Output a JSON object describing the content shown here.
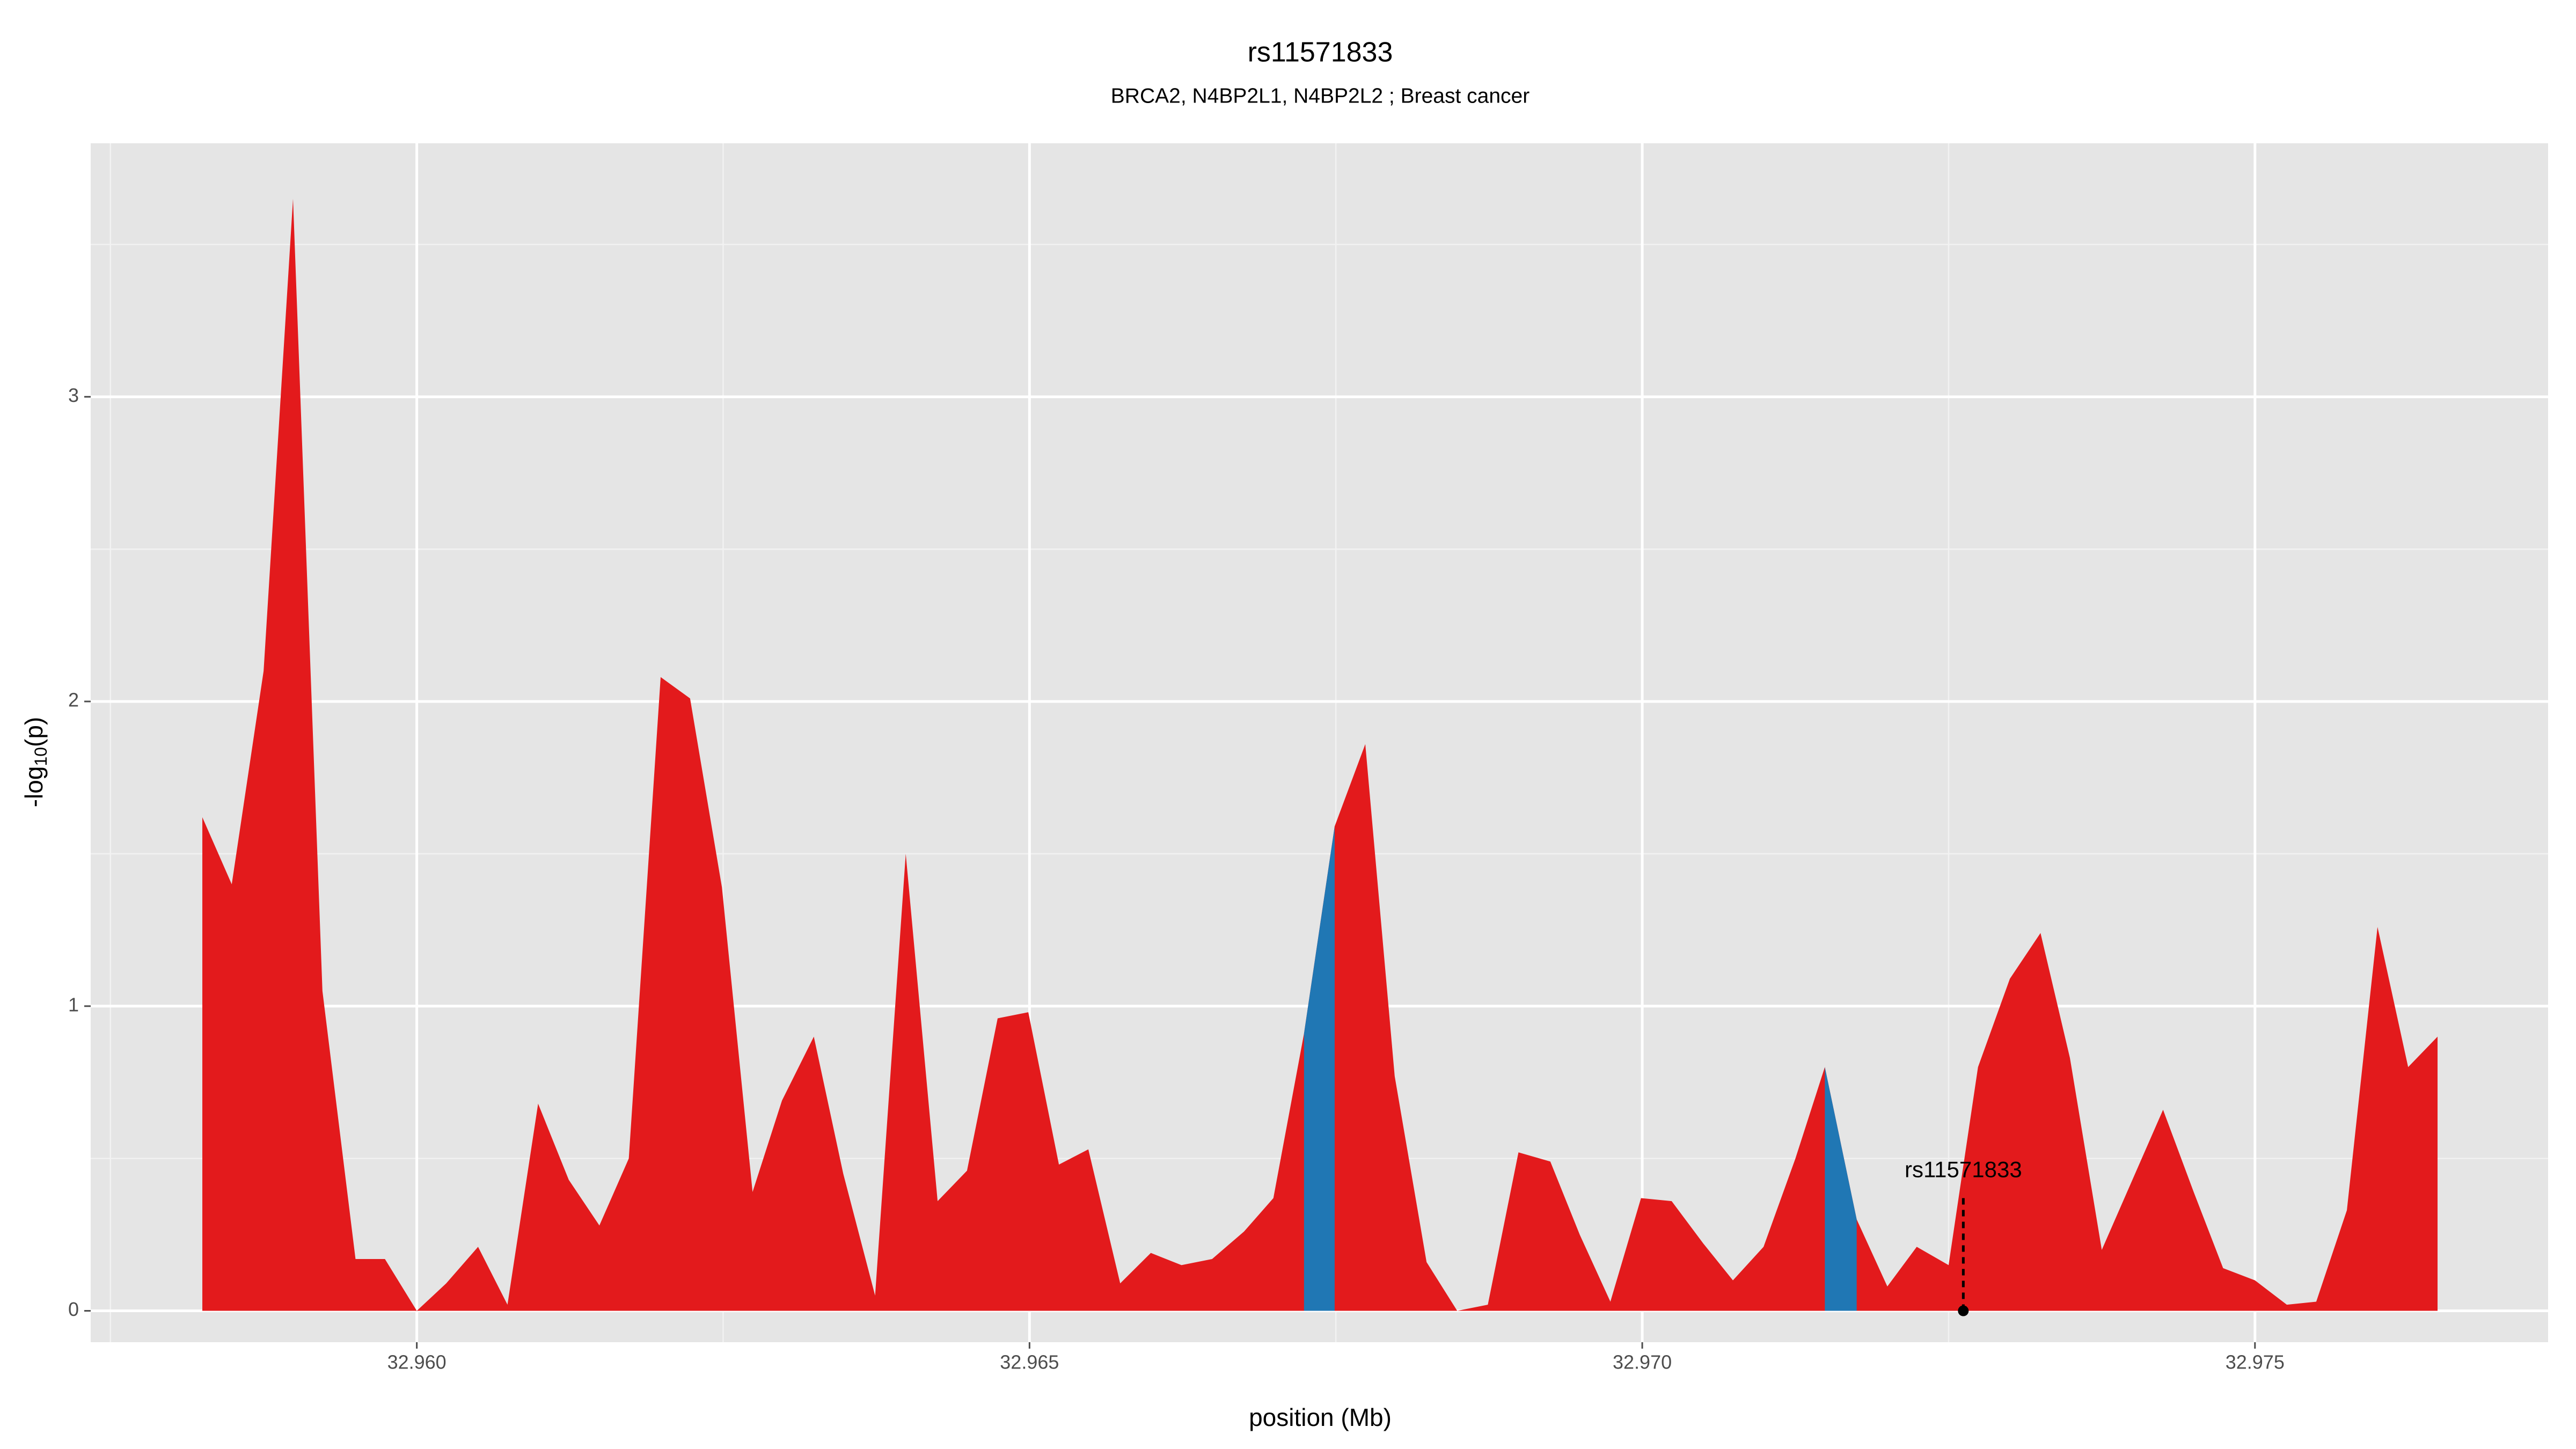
{
  "chart_data": {
    "type": "area",
    "title": "rs11571833",
    "subtitle": "BRCA2, N4BP2L1, N4BP2L2 ; Breast cancer",
    "x_label": "position (Mb)",
    "y_label": {
      "main": "-log",
      "sub": "10",
      "tail": "(p)"
    },
    "color": "#e31a1c",
    "x": [
      32.95825,
      32.95849,
      32.95875,
      32.95899,
      32.95923,
      32.9595,
      32.95974,
      32.96,
      32.96024,
      32.9605,
      32.96074,
      32.96099,
      32.96124,
      32.96149,
      32.96173,
      32.96199,
      32.96223,
      32.96249,
      32.96274,
      32.96298,
      32.96324,
      32.96348,
      32.96374,
      32.96399,
      32.96425,
      32.96449,
      32.96474,
      32.96499,
      32.96524,
      32.96548,
      32.96574,
      32.96599,
      32.96624,
      32.96649,
      32.96675,
      32.96699,
      32.96724,
      32.96749,
      32.96774,
      32.96798,
      32.96824,
      32.96849,
      32.96874,
      32.96899,
      32.96925,
      32.96949,
      32.96974,
      32.96999,
      32.97024,
      32.9705,
      32.97074,
      32.97099,
      32.97125,
      32.97149,
      32.97175,
      32.972,
      32.97224,
      32.9725,
      32.97274,
      32.973,
      32.97325,
      32.97349,
      32.97375,
      32.974,
      32.97425,
      32.9745,
      32.97474,
      32.975,
      32.97526,
      32.9755,
      32.97575,
      32.976,
      32.97625,
      32.97649
    ],
    "values": [
      1.62,
      1.4,
      2.1,
      3.65,
      1.05,
      0.17,
      0.17,
      0,
      0.09,
      0.21,
      0.02,
      0.68,
      0.43,
      0.28,
      0.5,
      2.08,
      2.01,
      1.39,
      0.39,
      0.69,
      0.9,
      0.45,
      0.05,
      1.5,
      0.36,
      0.46,
      0.96,
      0.98,
      0.48,
      0.53,
      0.09,
      0.19,
      0.15,
      0.17,
      0.26,
      0.37,
      0.91,
      1.59,
      1.86,
      0.77,
      0.16,
      0,
      0.02,
      0.52,
      0.49,
      0.25,
      0.03,
      0.37,
      0.36,
      0.22,
      0.1,
      0.21,
      0.5,
      0.8,
      0.3,
      0.08,
      0.21,
      0.15,
      0.8,
      1.09,
      1.24,
      0.83,
      0.2,
      0.43,
      0.66,
      0.39,
      0.14,
      0.1,
      0.02,
      0.03,
      0.33,
      1.26,
      0.8,
      0.9
    ],
    "highlights": [
      [
        32.96724,
        32.96749
      ],
      [
        32.97149,
        32.97175
      ]
    ],
    "highlight_color": "#2077b4",
    "annotation": {
      "label": "rs11571833",
      "x": 32.97262,
      "y": 0,
      "y_end": 0.37
    },
    "xlim": [
      32.957339,
      32.977392
    ],
    "ylim": [
      -0.103,
      3.832
    ],
    "xticks": [
      {
        "value": 32.96,
        "label": "32.960"
      },
      {
        "value": 32.965,
        "label": "32.965"
      },
      {
        "value": 32.97,
        "label": "32.970"
      },
      {
        "value": 32.975,
        "label": "32.975"
      }
    ],
    "yticks": [
      0,
      1,
      2,
      3
    ],
    "x_minor_grid": [
      32.9575,
      32.9625,
      32.9675,
      32.9725,
      32.9775
    ],
    "y_minor_grid": [
      0.5,
      1.5,
      2.5,
      3.5
    ],
    "grid": true
  }
}
